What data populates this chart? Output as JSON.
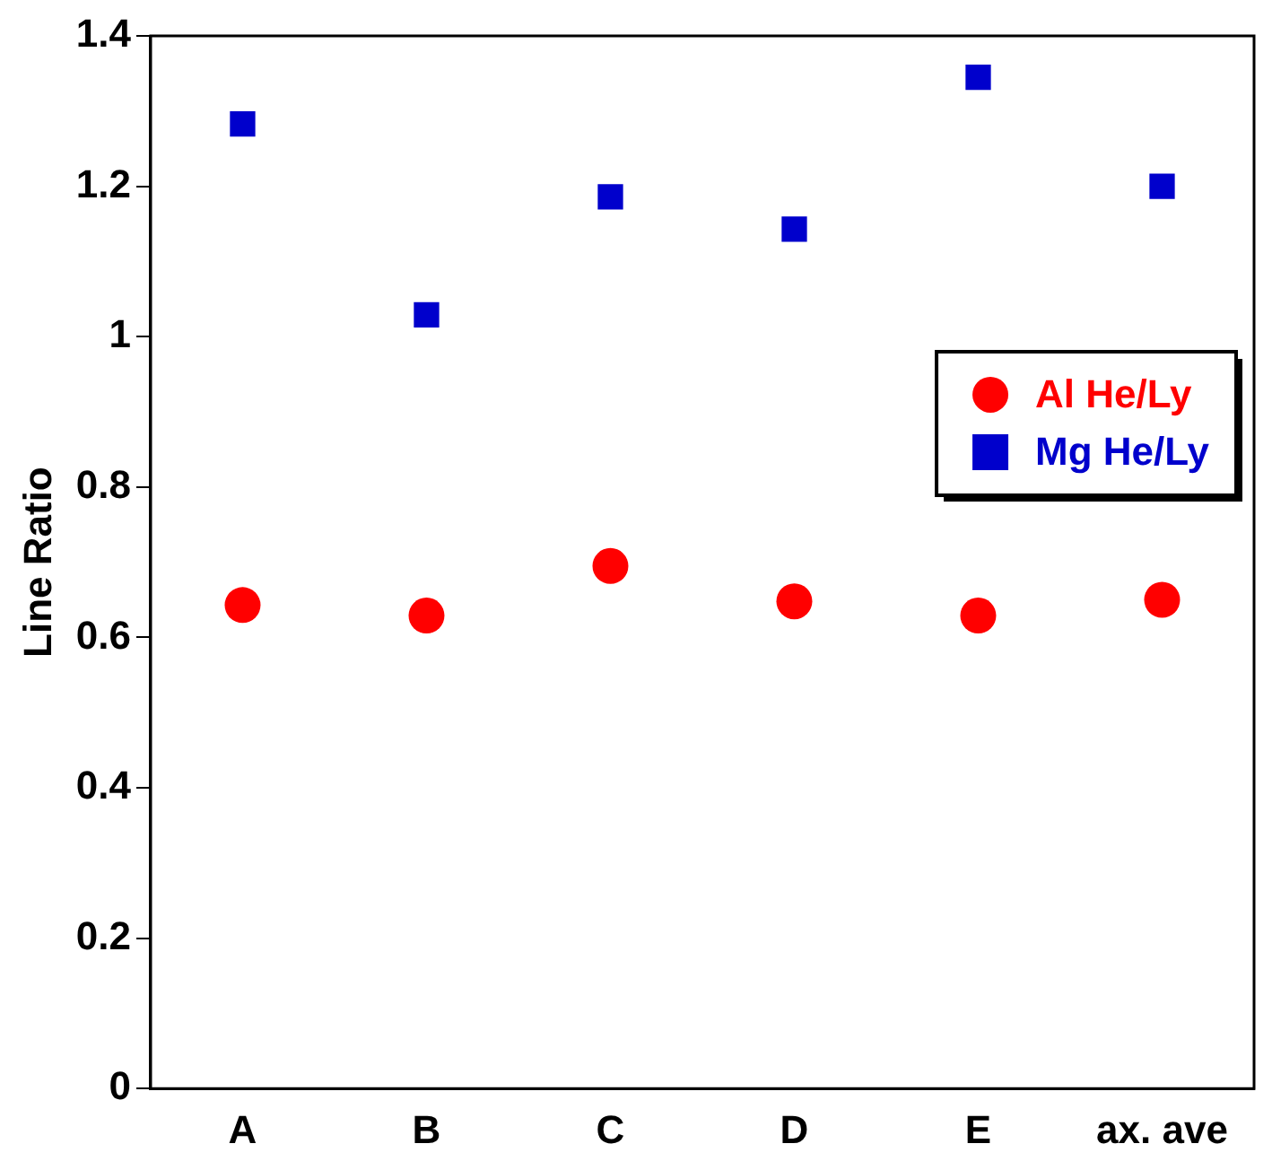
{
  "chart_data": {
    "type": "scatter",
    "ylabel": "Line Ratio",
    "categories": [
      "A",
      "B",
      "C",
      "D",
      "E",
      "ax. ave"
    ],
    "series": [
      {
        "name": "Al He/Ly",
        "color": "#ff0000",
        "marker": "circle",
        "values": [
          0.643,
          0.629,
          0.695,
          0.648,
          0.629,
          0.65
        ]
      },
      {
        "name": "Mg He/Ly",
        "color": "#0000cc",
        "marker": "square",
        "values": [
          1.283,
          1.029,
          1.186,
          1.143,
          1.345,
          1.2
        ]
      }
    ],
    "ylim": [
      0,
      1.4
    ],
    "yticks": [
      0,
      0.2,
      0.4,
      0.6,
      0.8,
      1,
      1.2,
      1.4
    ],
    "grid": false,
    "legend": "right"
  }
}
